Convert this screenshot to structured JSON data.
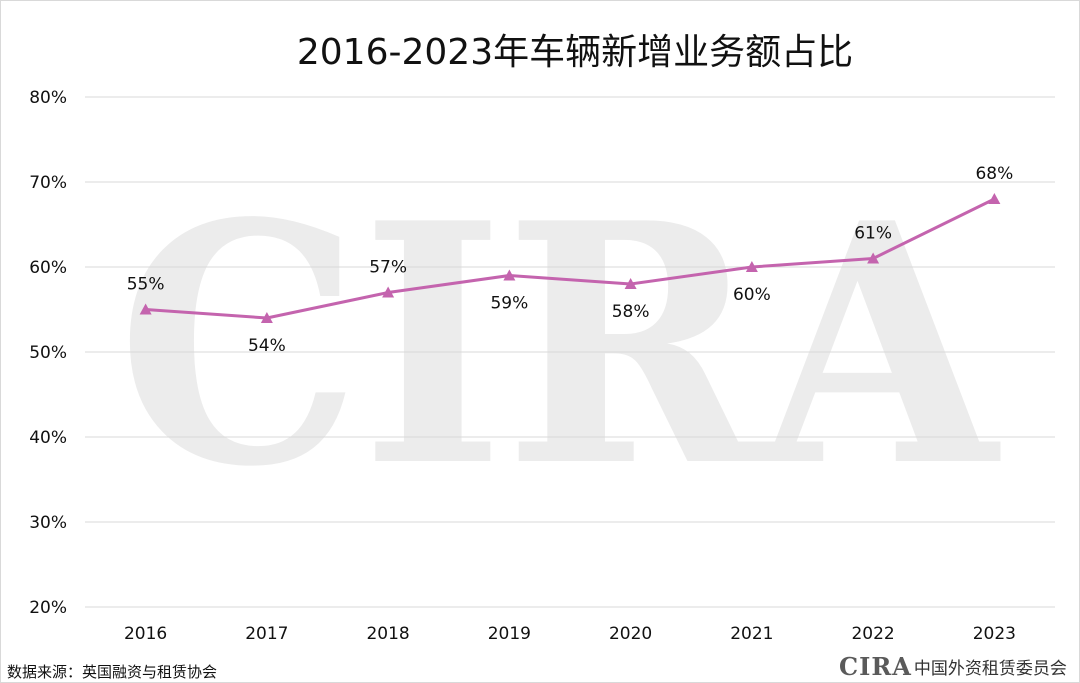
{
  "chart_data": {
    "type": "line",
    "title": "2016-2023年车辆新增业务额占比",
    "categories": [
      "2016",
      "2017",
      "2018",
      "2019",
      "2020",
      "2021",
      "2022",
      "2023"
    ],
    "series": [
      {
        "values": [
          55,
          54,
          57,
          59,
          58,
          60,
          61,
          68
        ],
        "data_labels": [
          "55%",
          "54%",
          "57%",
          "59%",
          "58%",
          "60%",
          "61%",
          "68%"
        ],
        "color": "#c464ae",
        "marker": "triangle"
      }
    ],
    "y_ticks": [
      "20%",
      "30%",
      "40%",
      "50%",
      "60%",
      "70%",
      "80%"
    ],
    "ylim": [
      20,
      80
    ],
    "grid": true,
    "gridline_color": "#d9d9d9",
    "xlabel": "",
    "ylabel": ""
  },
  "watermark": {
    "text": "CIRA",
    "color": "#ececec"
  },
  "footer": {
    "source": "数据来源：英国融资与租赁协会",
    "logo_text": "CIRA",
    "org_name": "中国外资租赁委员会"
  }
}
